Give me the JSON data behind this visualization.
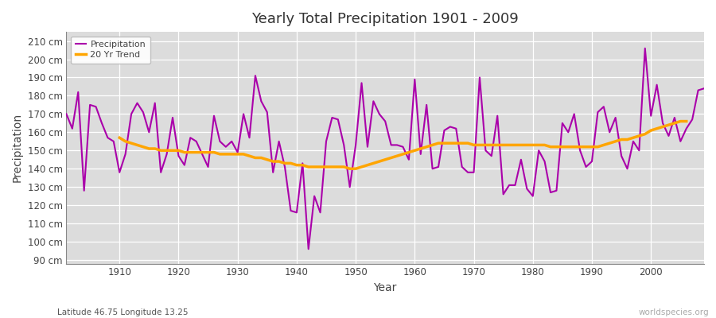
{
  "title": "Yearly Total Precipitation 1901 - 2009",
  "xlabel": "Year",
  "ylabel": "Precipitation",
  "subtitle": "Latitude 46.75 Longitude 13.25",
  "watermark": "worldspecies.org",
  "ylim": [
    88,
    215
  ],
  "yticks": [
    90,
    100,
    110,
    120,
    130,
    140,
    150,
    160,
    170,
    180,
    190,
    200,
    210
  ],
  "ytick_labels": [
    "90 cm",
    "100 cm",
    "110 cm",
    "120 cm",
    "130 cm",
    "140 cm",
    "150 cm",
    "160 cm",
    "170 cm",
    "180 cm",
    "190 cm",
    "200 cm",
    "210 cm"
  ],
  "fig_bg_color": "#ffffff",
  "plot_bg_color": "#dcdcdc",
  "precip_color": "#aa00aa",
  "trend_color": "#ffa500",
  "precip_linewidth": 1.5,
  "trend_linewidth": 2.5,
  "years": [
    1901,
    1902,
    1903,
    1904,
    1905,
    1906,
    1907,
    1908,
    1909,
    1910,
    1911,
    1912,
    1913,
    1914,
    1915,
    1916,
    1917,
    1918,
    1919,
    1920,
    1921,
    1922,
    1923,
    1924,
    1925,
    1926,
    1927,
    1928,
    1929,
    1930,
    1931,
    1932,
    1933,
    1934,
    1935,
    1936,
    1937,
    1938,
    1939,
    1940,
    1941,
    1942,
    1943,
    1944,
    1945,
    1946,
    1947,
    1948,
    1949,
    1950,
    1951,
    1952,
    1953,
    1954,
    1955,
    1956,
    1957,
    1958,
    1959,
    1960,
    1961,
    1962,
    1963,
    1964,
    1965,
    1966,
    1967,
    1968,
    1969,
    1970,
    1971,
    1972,
    1973,
    1974,
    1975,
    1976,
    1977,
    1978,
    1979,
    1980,
    1981,
    1982,
    1983,
    1984,
    1985,
    1986,
    1987,
    1988,
    1989,
    1990,
    1991,
    1992,
    1993,
    1994,
    1995,
    1996,
    1997,
    1998,
    1999,
    2000,
    2001,
    2002,
    2003,
    2004,
    2005,
    2006,
    2007,
    2008,
    2009
  ],
  "precip": [
    170,
    162,
    182,
    128,
    175,
    174,
    165,
    157,
    155,
    138,
    148,
    170,
    176,
    171,
    160,
    176,
    138,
    148,
    168,
    147,
    142,
    157,
    155,
    148,
    141,
    169,
    155,
    152,
    155,
    149,
    170,
    157,
    191,
    177,
    171,
    138,
    155,
    141,
    117,
    116,
    143,
    96,
    125,
    116,
    155,
    168,
    167,
    153,
    130,
    153,
    187,
    152,
    177,
    170,
    166,
    153,
    153,
    152,
    145,
    189,
    148,
    175,
    140,
    141,
    161,
    163,
    162,
    141,
    138,
    138,
    190,
    150,
    147,
    169,
    126,
    131,
    131,
    145,
    129,
    125,
    150,
    144,
    127,
    128,
    165,
    160,
    170,
    150,
    141,
    144,
    171,
    174,
    160,
    168,
    147,
    140,
    155,
    150,
    206,
    169,
    186,
    165,
    158,
    168,
    155,
    162,
    167,
    183,
    184
  ],
  "trend": [
    null,
    null,
    null,
    null,
    null,
    null,
    null,
    null,
    null,
    157,
    155,
    154,
    153,
    152,
    151,
    151,
    150,
    150,
    150,
    150,
    149,
    149,
    149,
    149,
    149,
    149,
    148,
    148,
    148,
    148,
    148,
    147,
    146,
    146,
    145,
    144,
    144,
    143,
    143,
    142,
    142,
    141,
    141,
    141,
    141,
    141,
    141,
    141,
    140,
    140,
    141,
    142,
    143,
    144,
    145,
    146,
    147,
    148,
    149,
    150,
    151,
    152,
    153,
    154,
    154,
    154,
    154,
    154,
    154,
    153,
    153,
    153,
    153,
    153,
    153,
    153,
    153,
    153,
    153,
    153,
    153,
    153,
    152,
    152,
    152,
    152,
    152,
    152,
    152,
    152,
    152,
    153,
    154,
    155,
    156,
    156,
    157,
    158,
    159,
    161,
    162,
    163,
    164,
    165,
    166,
    166,
    null,
    null,
    null
  ]
}
